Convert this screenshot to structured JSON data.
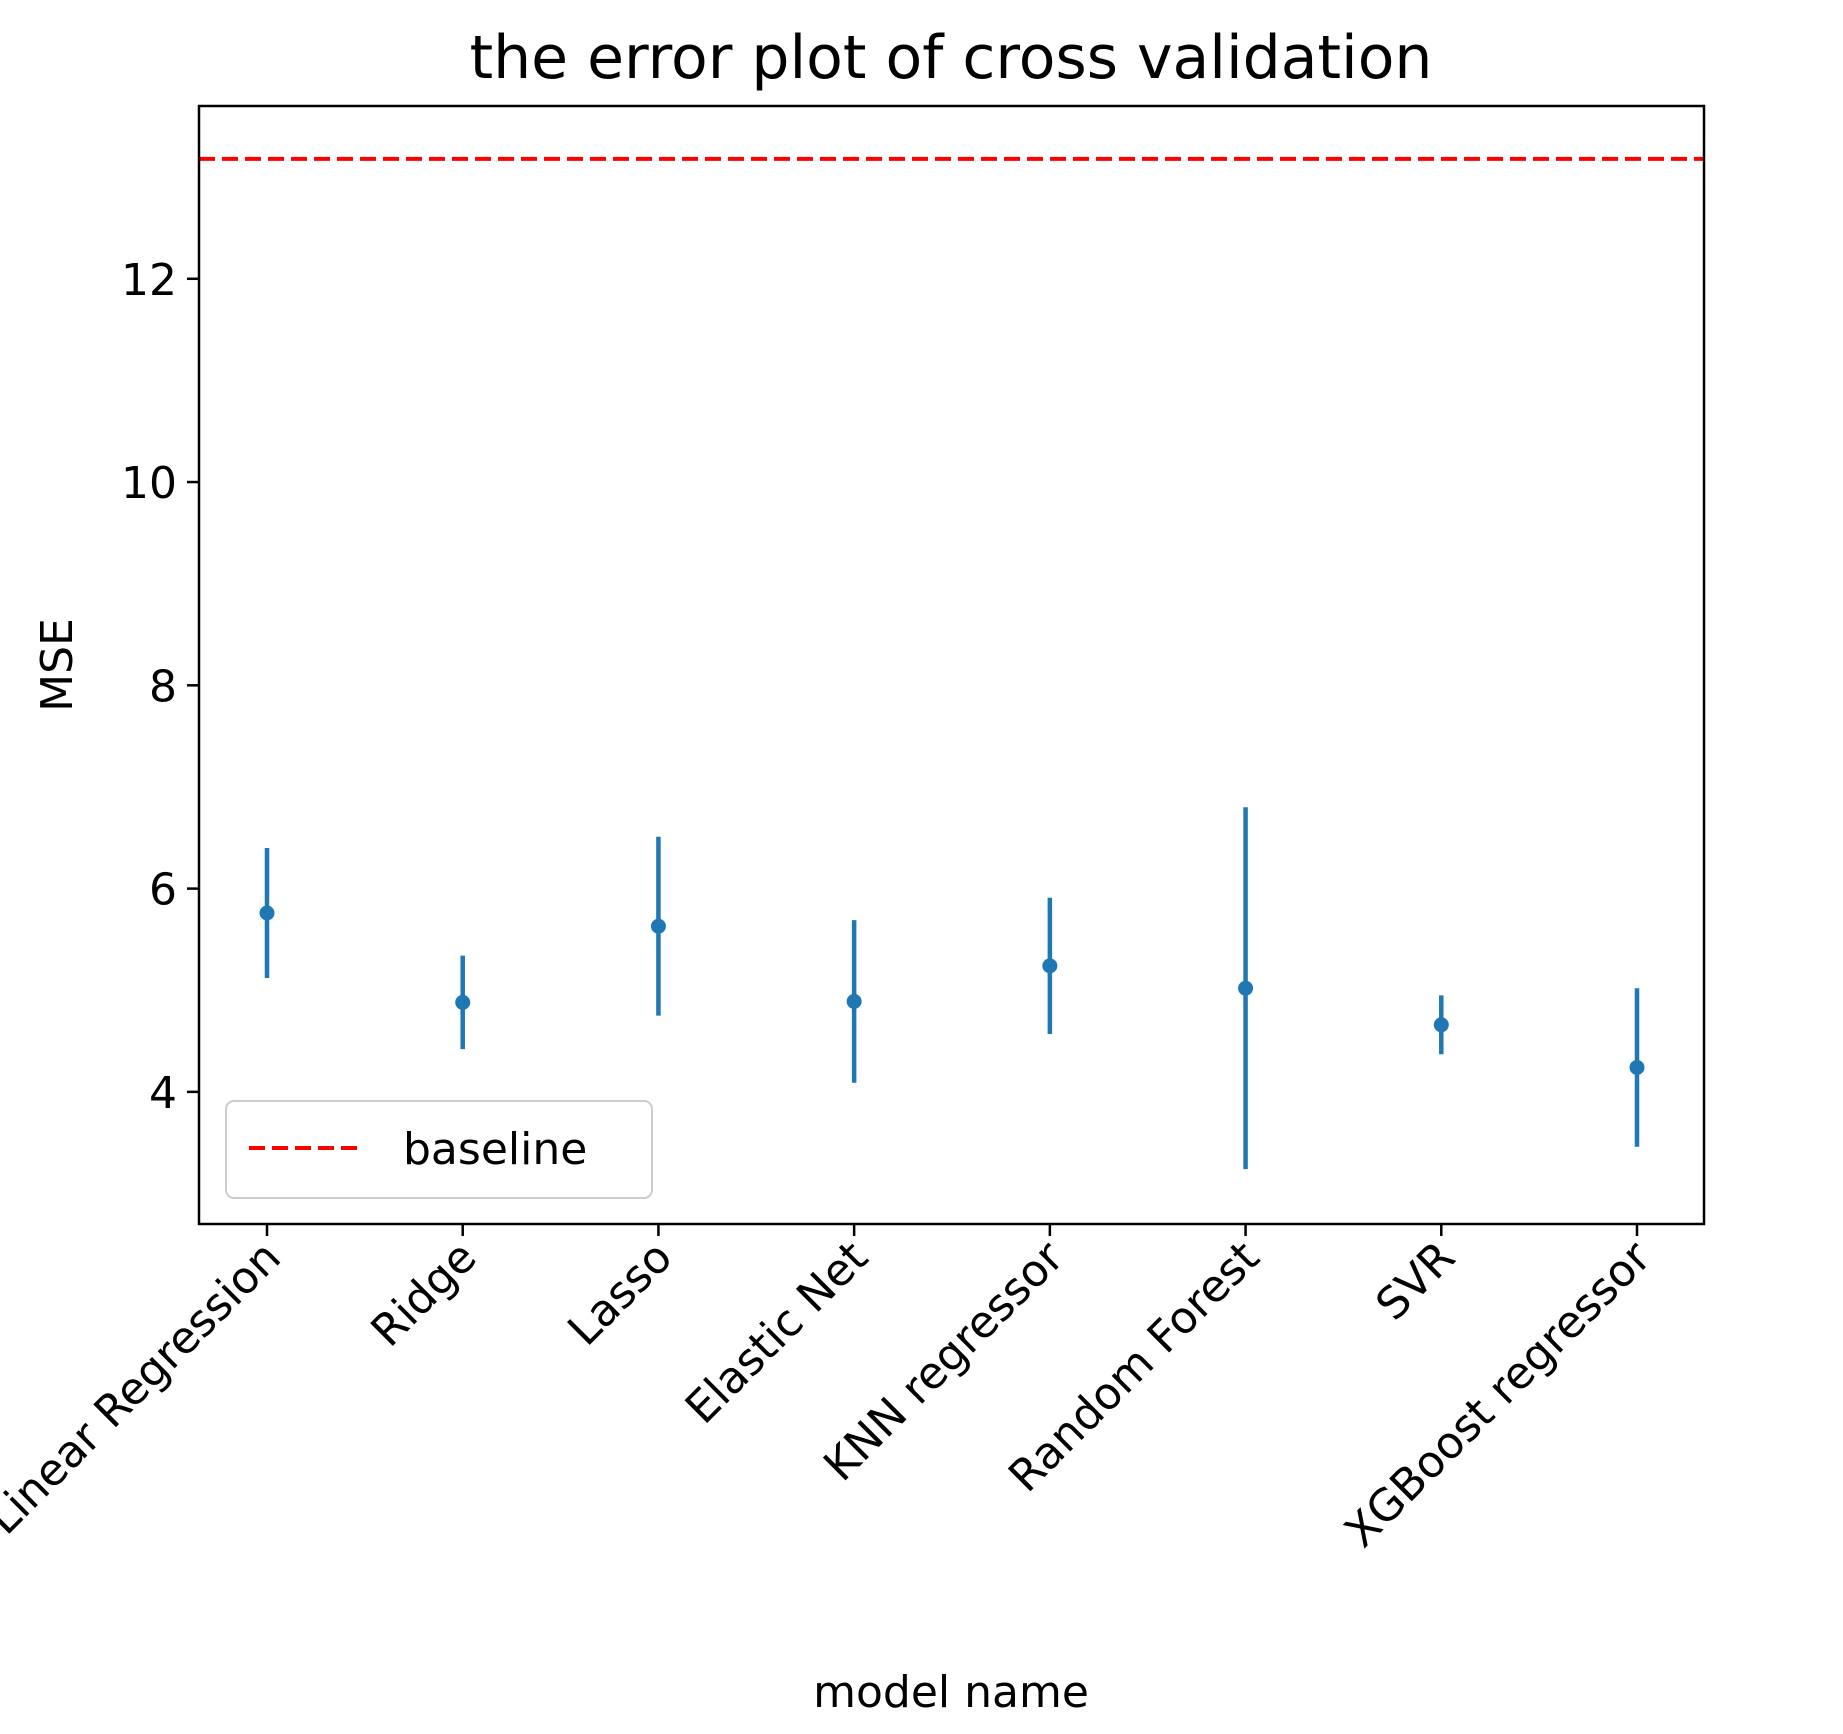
{
  "chart_data": {
    "type": "errorbar",
    "title": "the error plot of cross validation",
    "xlabel": "model name",
    "ylabel": "MSE",
    "ylim": [
      2.7,
      13.7
    ],
    "yticks": [
      4,
      6,
      8,
      10,
      12
    ],
    "grid": false,
    "legend": {
      "position": "lower left",
      "entries": [
        "baseline"
      ]
    },
    "categories": [
      "Linear Regression",
      "Ridge",
      "Lasso",
      "Elastic Net",
      "KNN regressor",
      "Random Forest",
      "SVR",
      "XGBoost regressor"
    ],
    "series": [
      {
        "kind": "errorbar",
        "values": [
          5.76,
          4.88,
          5.63,
          4.89,
          5.24,
          5.02,
          4.66,
          4.24
        ],
        "errors": [
          0.64,
          0.46,
          0.88,
          0.8,
          0.67,
          1.78,
          0.29,
          0.78
        ],
        "color": "#1f77b4"
      },
      {
        "name": "baseline",
        "kind": "hline",
        "value": 13.18,
        "color": "#ff0000",
        "style": "dashed"
      }
    ]
  }
}
